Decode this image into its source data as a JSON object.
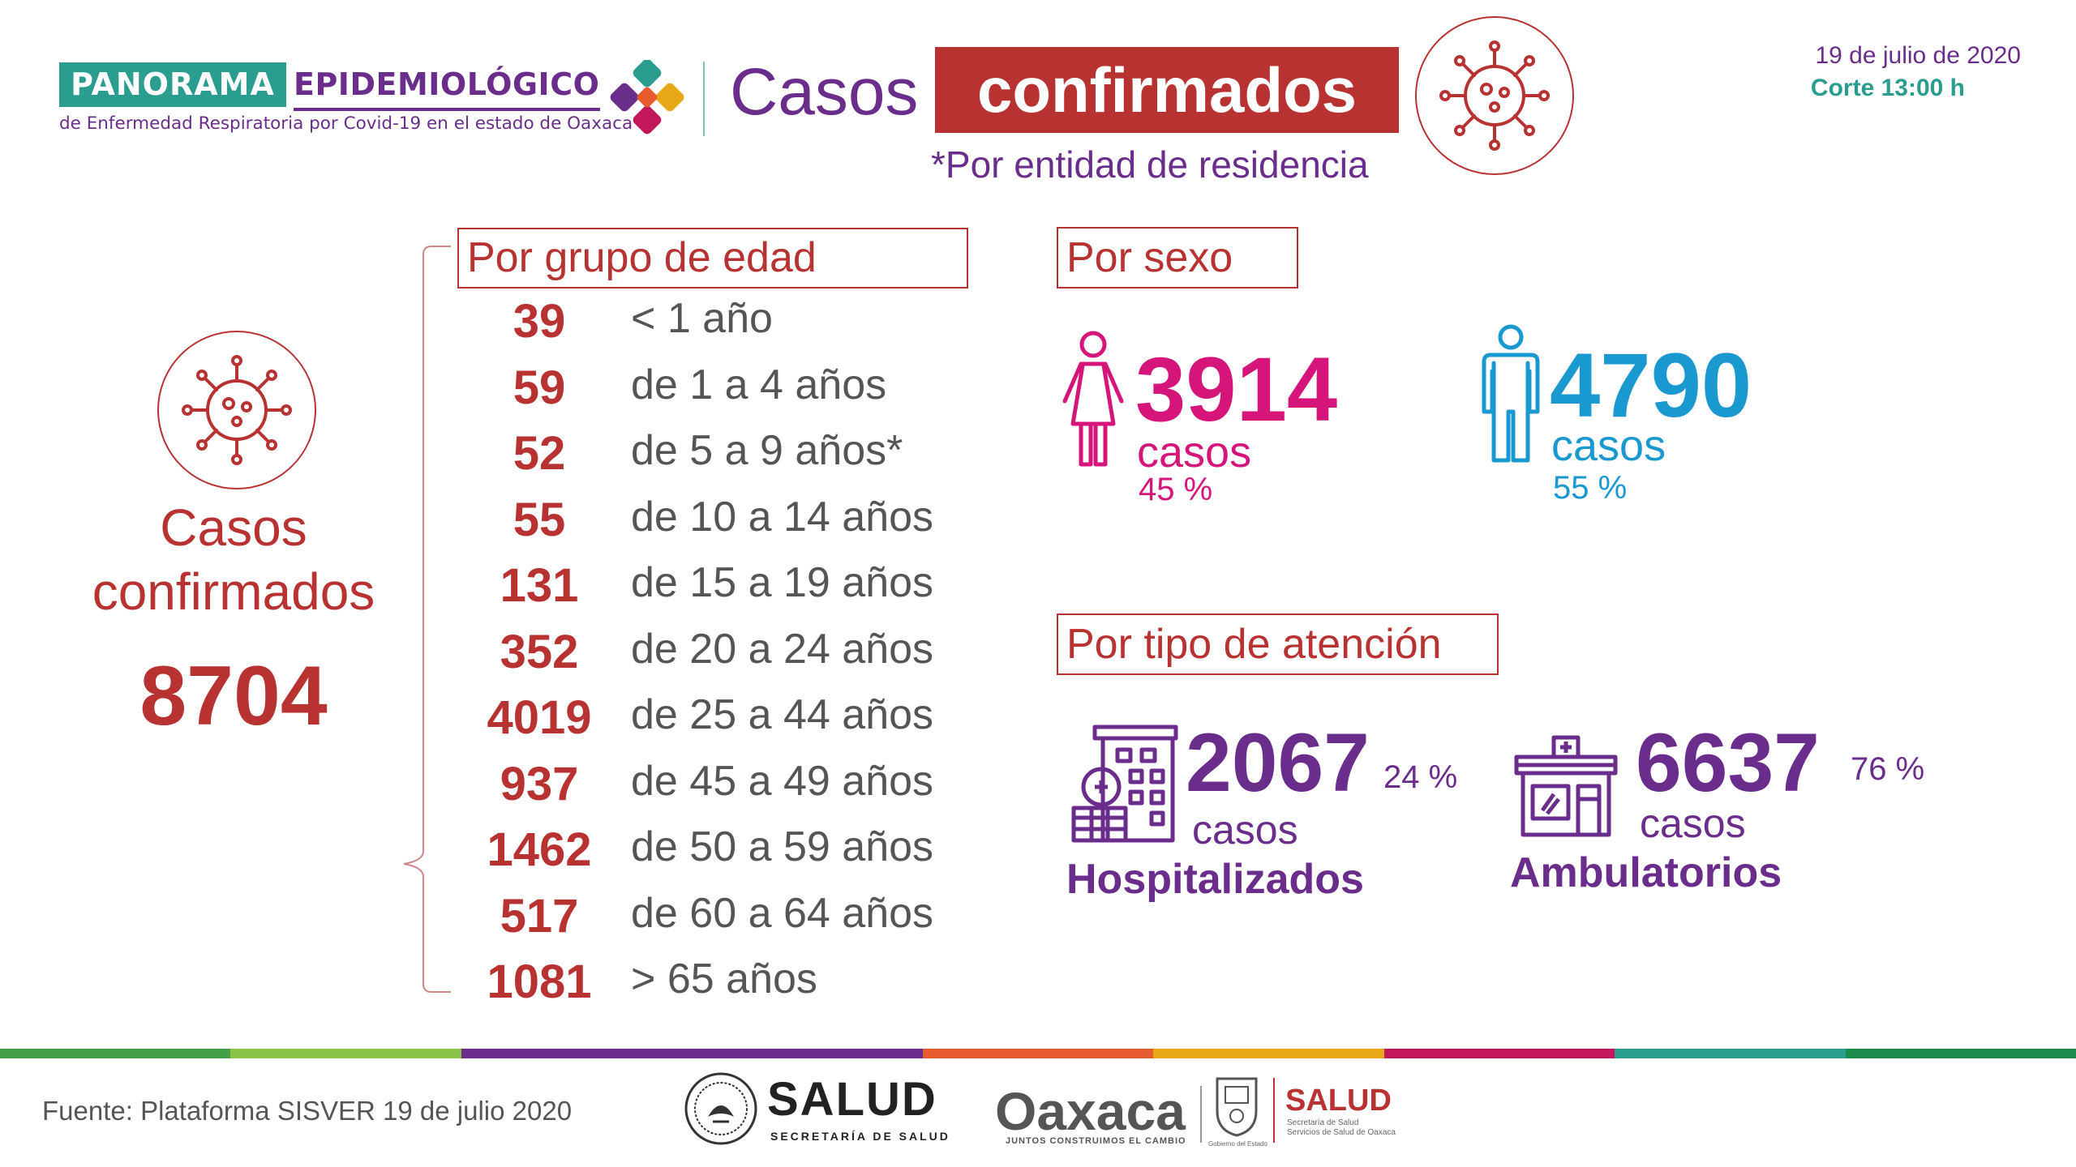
{
  "header": {
    "brand_part1": "PANORAMA",
    "brand_part2": "EPIDEMIOLÓGICO",
    "brand_subtitle": "de Enfermedad Respiratoria por Covid-19 en el estado de Oaxaca",
    "title_part1": "Casos",
    "title_part2": "confirmados",
    "title_note": "*Por entidad de residencia",
    "date": "19 de julio de 2020",
    "cutoff": "Corte 13:00 h"
  },
  "total": {
    "label": "Casos confirmados",
    "value": "8704"
  },
  "age": {
    "header": "Por grupo de edad",
    "rows": [
      {
        "value": "39",
        "label": "< 1 año"
      },
      {
        "value": "59",
        "label": "de 1 a 4 años"
      },
      {
        "value": "52",
        "label": "de 5 a 9 años*"
      },
      {
        "value": "55",
        "label": "de 10 a 14 años"
      },
      {
        "value": "131",
        "label": "de 15 a 19 años"
      },
      {
        "value": "352",
        "label": "de 20 a 24 años"
      },
      {
        "value": "4019",
        "label": "de 25 a 44 años"
      },
      {
        "value": "937",
        "label": "de 45 a 49 años"
      },
      {
        "value": "1462",
        "label": "de 50 a 59 años"
      },
      {
        "value": "517",
        "label": "de 60 a 64 años"
      },
      {
        "value": "1081",
        "label": "> 65 años"
      }
    ]
  },
  "sex": {
    "header": "Por sexo",
    "female": {
      "value": "3914",
      "unit": "casos",
      "percent": "45 %"
    },
    "male": {
      "value": "4790",
      "unit": "casos",
      "percent": "55 %"
    }
  },
  "attention": {
    "header": "Por tipo de atención",
    "hospitalized": {
      "value": "2067",
      "percent": "24  %",
      "unit": "casos",
      "label": "Hospitalizados"
    },
    "ambulatory": {
      "value": "6637",
      "percent": "76  %",
      "unit": "casos",
      "label": "Ambulatorios"
    }
  },
  "footer": {
    "source": "Fuente: Plataforma SISVER 19 de julio 2020",
    "salud_federal": "SALUD",
    "salud_federal_sub": "SECRETARÍA DE SALUD",
    "oaxaca_word": "Oaxaca",
    "oaxaca_sub": "JUNTOS CONSTRUIMOS EL CAMBIO",
    "gobierno_sub": "Gobierno del Estado",
    "salud_oaxaca": "SALUD",
    "salud_oaxaca_sub1": "Secretaría de Salud",
    "salud_oaxaca_sub2": "Servicios de Salud de Oaxaca"
  },
  "colors": {
    "red": "#b83232",
    "purple": "#6b2d8c",
    "teal": "#2a9d8f",
    "magenta": "#d6157b",
    "blue": "#1a98d0",
    "stripe": [
      "#43a047",
      "#8bc34a",
      "#6b2d8c",
      "#6b2d8c",
      "#e65c2e",
      "#e6a817",
      "#c2185b",
      "#2a9d8f",
      "#1e8a4c"
    ]
  },
  "icons": {
    "virus": "virus-icon",
    "female": "female-person-icon",
    "male": "male-person-icon",
    "hospital": "hospital-building-icon",
    "clinic": "clinic-building-icon",
    "seal": "mexico-seal-icon",
    "shield": "oaxaca-shield-icon"
  }
}
